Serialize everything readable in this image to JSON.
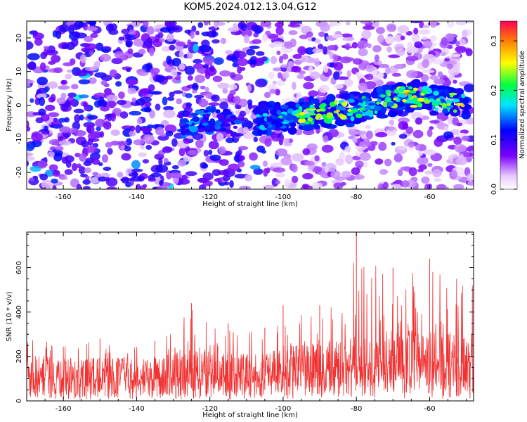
{
  "title": "KOM5.2024.012.13.04.G12",
  "colors": {
    "snr_line": "#f03232",
    "spectrogram_low": "#ffffff",
    "spectrogram_high": "#ff0055"
  },
  "chart_data": [
    {
      "type": "heatmap",
      "xlabel": "Height of straight line (km)",
      "ylabel": "Frequency (Hz)",
      "xlim": [
        -170,
        -48
      ],
      "ylim": [
        -25,
        25
      ],
      "xticks": [
        -160,
        -140,
        -120,
        -100,
        -80,
        -60
      ],
      "yticks": [
        -20,
        -10,
        0,
        10,
        20
      ],
      "colorbar": {
        "label": "Normalized spectral amplitude",
        "range": [
          0.0,
          0.34
        ],
        "ticks": [
          "0.0",
          "0.1",
          "0.2",
          "0.3"
        ],
        "colormap": "rainbow"
      },
      "signal_band": [
        {
          "x": -107,
          "freq_center": -4,
          "amp": 0.17
        },
        {
          "x": -100,
          "freq_center": -3.5,
          "amp": 0.2
        },
        {
          "x": -95,
          "freq_center": -3,
          "amp": 0.26
        },
        {
          "x": -90,
          "freq_center": -2.5,
          "amp": 0.24
        },
        {
          "x": -86,
          "freq_center": -2,
          "amp": 0.27
        },
        {
          "x": -82,
          "freq_center": -1.5,
          "amp": 0.25
        },
        {
          "x": -78,
          "freq_center": -0.5,
          "amp": 0.22
        },
        {
          "x": -74,
          "freq_center": 0.5,
          "amp": 0.22
        },
        {
          "x": -70,
          "freq_center": 1.5,
          "amp": 0.25
        },
        {
          "x": -66,
          "freq_center": 2.5,
          "amp": 0.3
        },
        {
          "x": -62,
          "freq_center": 2.5,
          "amp": 0.25
        },
        {
          "x": -58,
          "freq_center": 1.5,
          "amp": 0.23
        },
        {
          "x": -54,
          "freq_center": 0.5,
          "amp": 0.24
        },
        {
          "x": -50,
          "freq_center": 0.5,
          "amp": 0.28
        }
      ],
      "faint_band": [
        {
          "x": -128,
          "freq_center": -6,
          "amp": 0.14
        },
        {
          "x": -124,
          "freq_center": -5,
          "amp": 0.15
        },
        {
          "x": -120,
          "freq_center": -4.5,
          "amp": 0.14
        },
        {
          "x": -116,
          "freq_center": -5,
          "amp": 0.13
        },
        {
          "x": -112,
          "freq_center": -5.5,
          "amp": 0.13
        }
      ]
    },
    {
      "type": "line",
      "xlabel": "Height of straight line (km)",
      "ylabel": "SNR (10 * v/v)",
      "xlim": [
        -170,
        -48
      ],
      "ylim": [
        0,
        760
      ],
      "xticks": [
        -160,
        -140,
        -120,
        -100,
        -80,
        -60
      ],
      "yticks": [
        0,
        200,
        400,
        600
      ],
      "series": [
        {
          "name": "",
          "color": "#f03232",
          "envelope": [
            {
              "x": -170,
              "mean": 120,
              "peak": 300
            },
            {
              "x": -150,
              "mean": 115,
              "peak": 280
            },
            {
              "x": -135,
              "mean": 115,
              "peak": 270
            },
            {
              "x": -125,
              "mean": 140,
              "peak": 440
            },
            {
              "x": -115,
              "mean": 130,
              "peak": 350
            },
            {
              "x": -105,
              "mean": 125,
              "peak": 330
            },
            {
              "x": -100,
              "mean": 150,
              "peak": 430
            },
            {
              "x": -90,
              "mean": 160,
              "peak": 430
            },
            {
              "x": -80,
              "mean": 175,
              "peak": 760
            },
            {
              "x": -70,
              "mean": 190,
              "peak": 600
            },
            {
              "x": -60,
              "mean": 185,
              "peak": 640
            },
            {
              "x": -48,
              "mean": 190,
              "peak": 560
            }
          ]
        }
      ]
    }
  ]
}
